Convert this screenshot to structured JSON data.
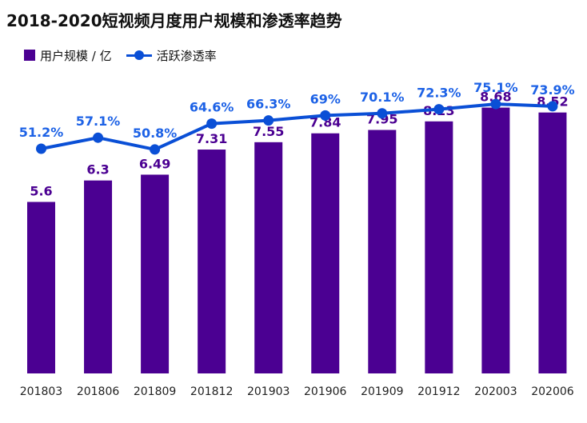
{
  "title": "2018-2020短视频月度用户规模和渗透率趋势",
  "colors": {
    "bar": "#4b0092",
    "bar_label": "#4b0092",
    "line": "#0a4fd6",
    "line_label": "#1d62e6"
  },
  "chart_data": {
    "type": "bar",
    "categories": [
      "201803",
      "201806",
      "201809",
      "201812",
      "201903",
      "201906",
      "201909",
      "201912",
      "202003",
      "202006"
    ],
    "series": [
      {
        "name": "用户规模 / 亿",
        "type": "bar",
        "values": [
          5.6,
          6.3,
          6.49,
          7.31,
          7.55,
          7.84,
          7.95,
          8.23,
          8.68,
          8.52
        ],
        "labels": [
          "5.6",
          "6.3",
          "6.49",
          "7.31",
          "7.55",
          "7.84",
          "7.95",
          "8.23",
          "8.68",
          "8.52"
        ]
      },
      {
        "name": "活跃渗透率",
        "type": "line",
        "values": [
          51.2,
          57.1,
          50.8,
          64.6,
          66.3,
          69.0,
          70.1,
          72.3,
          75.1,
          73.9
        ],
        "labels": [
          "51.2%",
          "57.1%",
          "50.8%",
          "64.6%",
          "66.3%",
          "69%",
          "70.1%",
          "72.3%",
          "75.1%",
          "73.9%"
        ]
      }
    ],
    "legend_position": "top-left",
    "grid": false
  }
}
